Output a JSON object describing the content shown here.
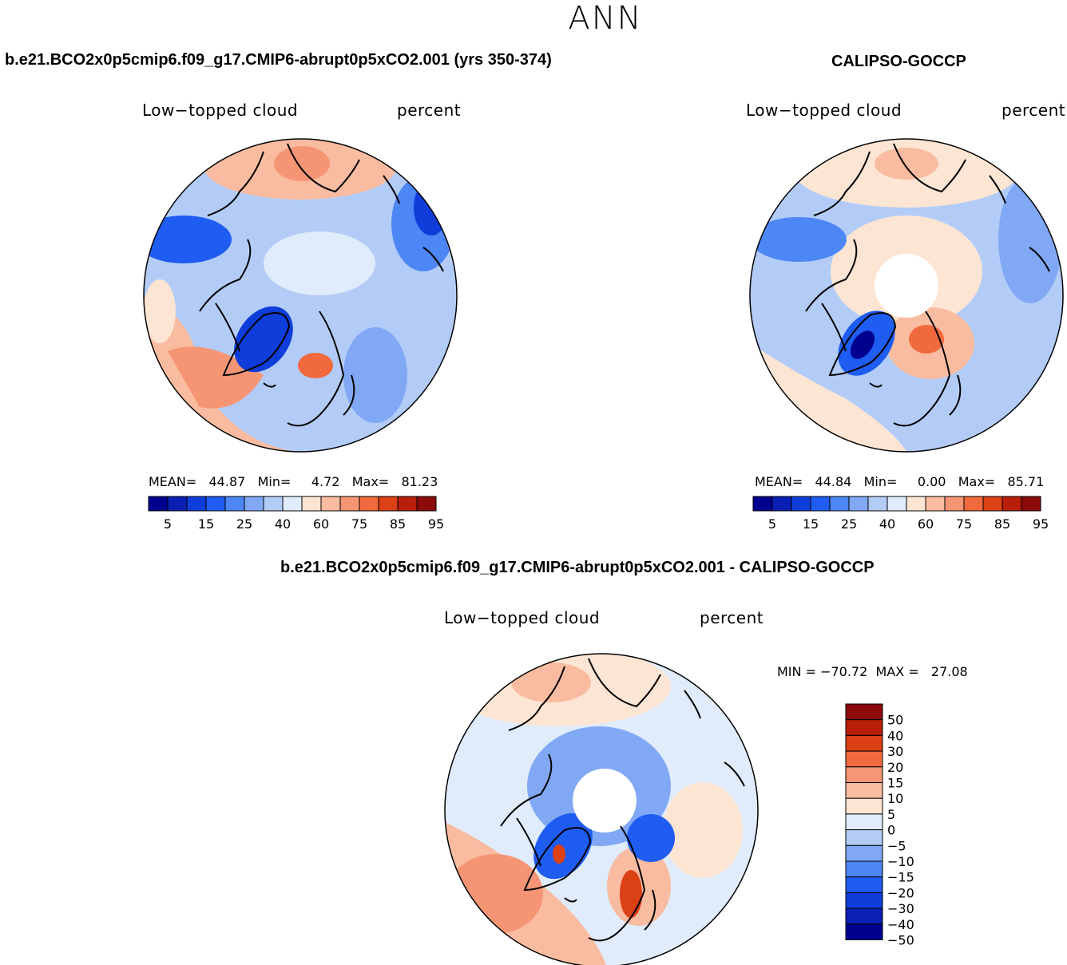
{
  "season": "ANN",
  "colors": {
    "abs": [
      "#00008f",
      "#0a1fb3",
      "#0f3dd9",
      "#1f5cf2",
      "#4d86f5",
      "#80a8f5",
      "#b3ccf7",
      "#e0ecfb",
      "#fde5d4",
      "#f9bca0",
      "#f59574",
      "#f06a3d",
      "#dc4015",
      "#b81e08",
      "#8c0a0a"
    ],
    "diff": [
      "#00008f",
      "#0a1fb3",
      "#0f3dd9",
      "#1f5cf2",
      "#4d86f5",
      "#80a8f5",
      "#b3ccf7",
      "#e0ecfb",
      "#fde5d4",
      "#f9bca0",
      "#f59574",
      "#f06a3d",
      "#dc4015",
      "#b81e08",
      "#8c0a0a"
    ]
  },
  "panels": {
    "model": {
      "title": "b.e21.BCO2x0p5cmip6.f09_g17.CMIP6-abrupt0p5xCO2.001 (yrs 350-374)",
      "variable": "Low−topped cloud",
      "units": "percent",
      "mean_label": "MEAN=",
      "mean": "44.87",
      "min_label": "Min=",
      "min": "4.72",
      "max_label": "Max=",
      "max": "81.23"
    },
    "obs": {
      "title": "CALIPSO-GOCCP",
      "variable": "Low−topped cloud",
      "units": "percent",
      "mean_label": "MEAN=",
      "mean": "44.84",
      "min_label": "Min=",
      "min": "0.00",
      "max_label": "Max=",
      "max": "85.71"
    },
    "diff": {
      "title": "b.e21.BCO2x0p5cmip6.f09_g17.CMIP6-abrupt0p5xCO2.001 - CALIPSO-GOCCP",
      "variable": "Low−topped cloud",
      "units": "percent",
      "minmax": "MIN = −70.72  MAX =   27.08"
    }
  },
  "colorbar_abs_ticks": [
    "5",
    "15",
    "25",
    "40",
    "60",
    "75",
    "85",
    "95"
  ],
  "colorbar_diff_ticks": [
    "50",
    "40",
    "30",
    "20",
    "15",
    "10",
    "5",
    "0",
    "−5",
    "−10",
    "−15",
    "−20",
    "−30",
    "−40",
    "−50"
  ]
}
